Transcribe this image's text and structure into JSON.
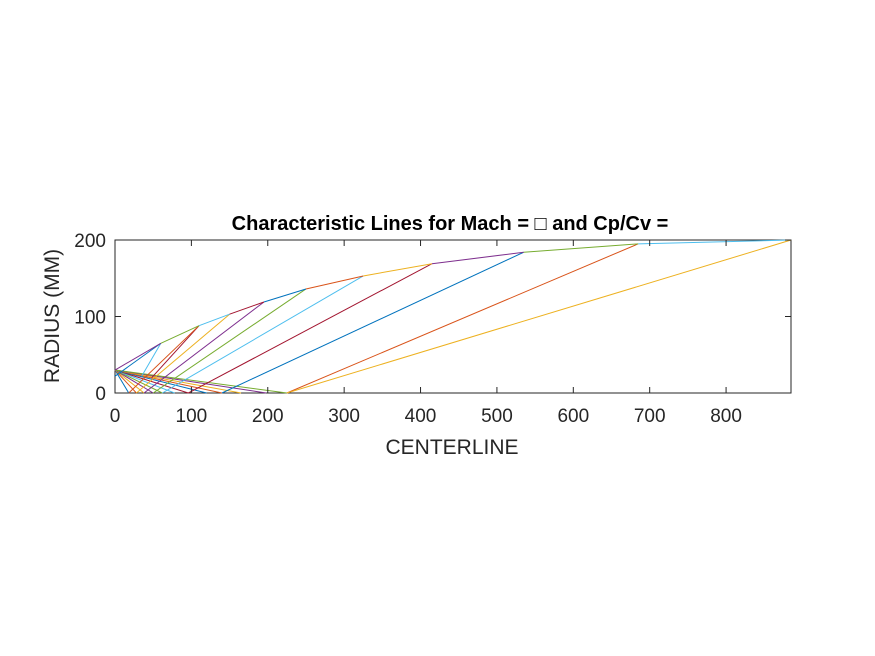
{
  "chart_data": {
    "type": "line",
    "title": "Characteristic Lines for Mach = □ and Cp/Cv =",
    "xlabel": "CENTERLINE",
    "ylabel": "RADIUS (MM)",
    "xlim": [
      0,
      885
    ],
    "ylim": [
      0,
      200
    ],
    "xticks": [
      "0",
      "100",
      "200",
      "300",
      "400",
      "500",
      "600",
      "700",
      "800"
    ],
    "xtick_values": [
      0,
      100,
      200,
      300,
      400,
      500,
      600,
      700,
      800
    ],
    "yticks": [
      "0",
      "100",
      "200"
    ],
    "ytick_values": [
      0,
      100,
      200
    ],
    "grid": false,
    "series_colors": [
      "#0072BD",
      "#D95319",
      "#EDB120",
      "#7E2F8E",
      "#77AC30",
      "#4DBEEE",
      "#A2142F"
    ],
    "wall_contour": {
      "x": [
        0,
        60,
        110,
        150,
        195,
        250,
        325,
        415,
        535,
        685,
        885
      ],
      "y": [
        30,
        65,
        88,
        103,
        119,
        136,
        153,
        169,
        184,
        195,
        200
      ]
    },
    "throat_point": {
      "x": 0,
      "y": 30
    },
    "centerline_points": [
      18,
      28,
      38,
      50,
      62,
      78,
      96,
      120,
      140,
      165,
      198,
      225
    ],
    "axis_wall_lines": [
      {
        "x": [
          0,
          60
        ],
        "y": [
          22,
          65
        ]
      },
      {
        "x": [
          18,
          110
        ],
        "y": [
          0,
          88
        ]
      },
      {
        "x": [
          28,
          150
        ],
        "y": [
          0,
          103
        ]
      },
      {
        "x": [
          38,
          195
        ],
        "y": [
          0,
          119
        ]
      },
      {
        "x": [
          50,
          250
        ],
        "y": [
          0,
          136
        ]
      },
      {
        "x": [
          62,
          325
        ],
        "y": [
          0,
          153
        ]
      },
      {
        "x": [
          96,
          415
        ],
        "y": [
          0,
          169
        ]
      },
      {
        "x": [
          140,
          535
        ],
        "y": [
          0,
          184
        ]
      },
      {
        "x": [
          225,
          685
        ],
        "y": [
          0,
          195
        ]
      },
      {
        "x": [
          225,
          885
        ],
        "y": [
          0,
          200
        ]
      }
    ],
    "throat_fan_lines": [
      {
        "x": [
          0,
          18
        ],
        "y": [
          30,
          0
        ]
      },
      {
        "x": [
          0,
          28
        ],
        "y": [
          30,
          0
        ]
      },
      {
        "x": [
          0,
          38
        ],
        "y": [
          30,
          0
        ]
      },
      {
        "x": [
          0,
          50
        ],
        "y": [
          30,
          0
        ]
      },
      {
        "x": [
          0,
          62
        ],
        "y": [
          30,
          0
        ]
      },
      {
        "x": [
          0,
          78
        ],
        "y": [
          30,
          0
        ]
      },
      {
        "x": [
          0,
          96
        ],
        "y": [
          30,
          0
        ]
      },
      {
        "x": [
          0,
          120
        ],
        "y": [
          30,
          0
        ]
      },
      {
        "x": [
          0,
          140
        ],
        "y": [
          30,
          0
        ]
      },
      {
        "x": [
          0,
          165
        ],
        "y": [
          30,
          0
        ]
      },
      {
        "x": [
          0,
          198
        ],
        "y": [
          30,
          0
        ]
      },
      {
        "x": [
          0,
          225
        ],
        "y": [
          30,
          0
        ]
      }
    ],
    "short_wall_lines": [
      {
        "x": [
          35,
          60
        ],
        "y": [
          22,
          65
        ]
      },
      {
        "x": [
          48,
          110
        ],
        "y": [
          20,
          88
        ]
      }
    ]
  }
}
